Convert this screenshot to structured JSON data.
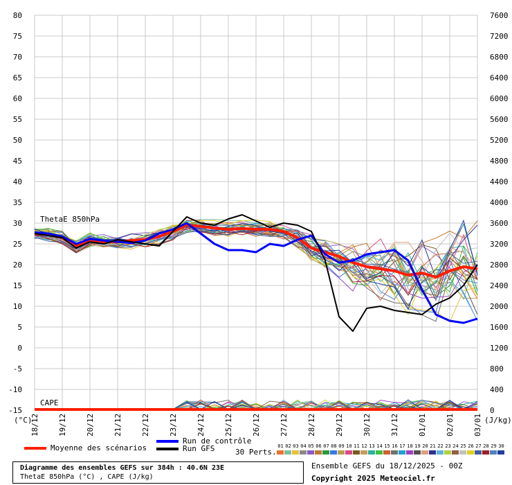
{
  "chart_data": {
    "type": "line",
    "x_ticks": [
      "18/12",
      "19/12",
      "20/12",
      "21/12",
      "22/12",
      "23/12",
      "24/12",
      "25/12",
      "26/12",
      "27/12",
      "28/12",
      "29/12",
      "30/12",
      "31/12",
      "01/01",
      "02/01",
      "03/01"
    ],
    "y_left_ticks": [
      80,
      75,
      70,
      65,
      60,
      55,
      50,
      45,
      40,
      35,
      30,
      25,
      20,
      15,
      10,
      5,
      0,
      -5,
      -10,
      -15
    ],
    "y_left_unit": "(°C)",
    "y_right_ticks": [
      7600,
      7200,
      6800,
      6400,
      6000,
      5600,
      5200,
      4800,
      4400,
      4000,
      3600,
      3200,
      2800,
      2400,
      2000,
      1600,
      1200,
      800,
      400,
      0
    ],
    "y_right_unit": "(J/kg)",
    "ylim_left": [
      -15,
      80
    ],
    "ylim_right": [
      0,
      7600
    ],
    "grid": true,
    "annotations": {
      "thetae": "ThetaE 850hPa",
      "cape": "CAPE"
    },
    "series": [
      {
        "name": "Moyenne des scénarios",
        "color": "#ff1e00",
        "x": [
          0,
          0.5,
          1,
          1.5,
          2,
          2.5,
          3,
          3.5,
          4,
          4.5,
          5,
          5.5,
          6,
          6.5,
          7,
          7.5,
          8,
          8.5,
          9,
          9.5,
          10,
          10.5,
          11,
          11.5,
          12,
          12.5,
          13,
          13.5,
          14,
          14.5,
          15,
          15.5,
          16
        ],
        "values": [
          27.5,
          27.3,
          26.5,
          24.5,
          26.0,
          25.5,
          25.5,
          25.8,
          26.0,
          26.8,
          28.0,
          29.5,
          29.2,
          28.8,
          28.5,
          28.7,
          28.5,
          28.5,
          28.0,
          26.5,
          24.0,
          23.0,
          22.0,
          20.5,
          19.5,
          19.0,
          18.5,
          17.5,
          18.0,
          17.0,
          18.5,
          19.5,
          19.0
        ]
      },
      {
        "name": "Run de contrôle",
        "color": "#0000ff",
        "x": [
          0,
          0.5,
          1,
          1.5,
          2,
          2.5,
          3,
          3.5,
          4,
          4.5,
          5,
          5.5,
          6,
          6.5,
          7,
          7.5,
          8,
          8.5,
          9,
          9.5,
          10,
          10.5,
          11,
          11.5,
          12,
          12.5,
          13,
          13.5,
          14,
          14.5,
          15,
          15.5,
          16
        ],
        "values": [
          27.8,
          27.5,
          26.8,
          25.0,
          26.2,
          25.8,
          25.5,
          25.2,
          25.8,
          27.5,
          28.5,
          30.0,
          27.5,
          25.0,
          23.5,
          23.5,
          23.0,
          25.0,
          24.5,
          26.0,
          27.0,
          22.5,
          20.5,
          21.0,
          22.5,
          23.0,
          23.5,
          21.0,
          14.0,
          8.0,
          6.5,
          6.0,
          7.0
        ]
      },
      {
        "name": "Run GFS",
        "color": "#000000",
        "x": [
          0,
          0.5,
          1,
          1.5,
          2,
          2.5,
          3,
          3.5,
          4,
          4.5,
          5,
          5.5,
          6,
          6.5,
          7,
          7.5,
          8,
          8.5,
          9,
          9.5,
          10,
          10.5,
          11,
          11.5,
          12,
          12.5,
          13,
          13.5,
          14,
          14.5,
          15,
          15.5,
          16
        ],
        "values": [
          27.5,
          27.0,
          26.5,
          24.0,
          25.5,
          25.0,
          26.0,
          25.5,
          25.0,
          24.5,
          28.0,
          31.5,
          30.0,
          29.5,
          31.0,
          32.0,
          30.5,
          29.0,
          30.0,
          29.5,
          28.0,
          21.0,
          7.5,
          4.0,
          9.5,
          10.0,
          9.0,
          8.5,
          8.0,
          10.5,
          12.0,
          15.0,
          20.0
        ]
      }
    ],
    "cape_series": {
      "name": "Moyenne des scénarios CAPE",
      "color": "#ff1e00",
      "x": [
        0,
        16
      ],
      "values": [
        0,
        0
      ]
    }
  },
  "legend": {
    "mean_label": "Moyenne des scénarios",
    "control_label": "Run de contrôle",
    "gfs_label": "Run GFS",
    "perts_label": "30 Perts.",
    "pert_numbers": [
      "01",
      "02",
      "03",
      "04",
      "05",
      "06",
      "07",
      "08",
      "09",
      "10",
      "11",
      "12",
      "13",
      "14",
      "15",
      "16",
      "17",
      "18",
      "19",
      "20",
      "21",
      "22",
      "23",
      "24",
      "25",
      "26",
      "27",
      "28",
      "29",
      "30"
    ],
    "pert_colors": [
      "#e8742b",
      "#7cc0a0",
      "#e8c03a",
      "#8a8a8a",
      "#8a5cc8",
      "#c07a30",
      "#2a9a3a",
      "#3a7ae0",
      "#b8a050",
      "#d84a8a",
      "#7a5a20",
      "#c89a60",
      "#2ab0a0",
      "#40c040",
      "#d06030",
      "#707070",
      "#20a0d0",
      "#a040c0",
      "#505050",
      "#e0a080",
      "#303090",
      "#60b0e0",
      "#b0d040",
      "#906040",
      "#c0c0c0",
      "#e0d020",
      "#4060a0",
      "#a02020",
      "#5080c0",
      "#2040a0"
    ]
  },
  "info": {
    "title_line": "Diagramme des ensembles GEFS sur 384h : 40.6N 23E",
    "subtitle_line": "ThetaE 850hPa (°C) , CAPE (J/kg)",
    "run_line": "Ensemble GEFS du 18/12/2025 - 00Z",
    "copyright_line": "Copyright 2025 Meteociel.fr"
  }
}
